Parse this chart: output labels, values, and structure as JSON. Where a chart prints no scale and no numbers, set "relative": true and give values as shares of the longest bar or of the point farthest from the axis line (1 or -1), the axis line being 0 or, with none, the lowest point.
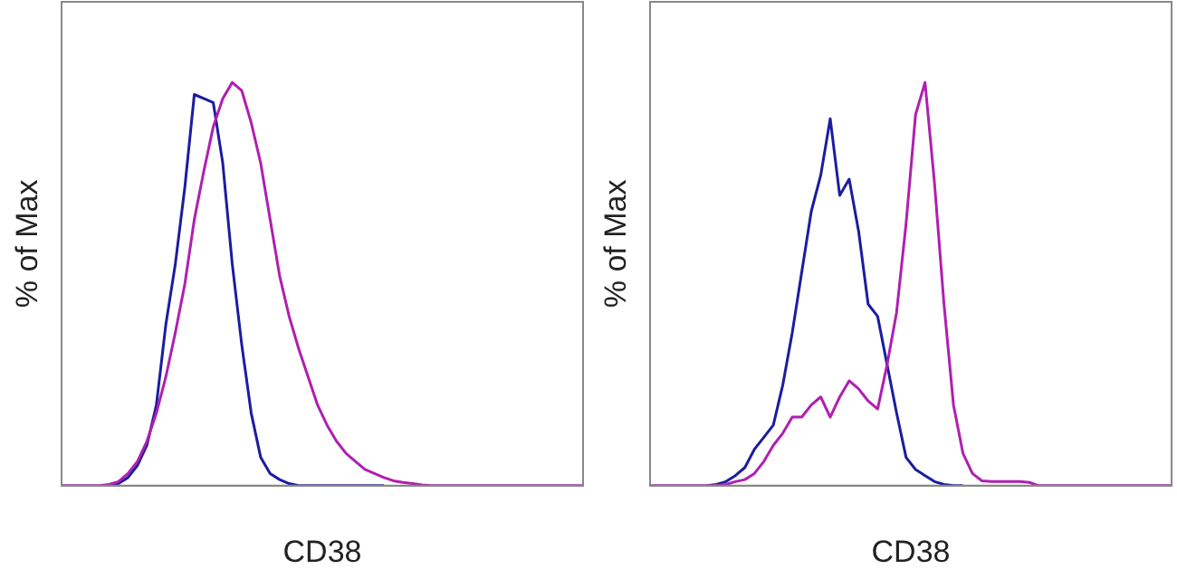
{
  "chart_data": [
    {
      "type": "line",
      "relative": true,
      "xlabel": "CD38",
      "ylabel": "% of Max",
      "categories": [
        null,
        null,
        null,
        null,
        null,
        null,
        null,
        null,
        null,
        null,
        null,
        null,
        null,
        null,
        null,
        null,
        null,
        null,
        null,
        null,
        null,
        null,
        null,
        null,
        null,
        null,
        null,
        null,
        null,
        null,
        null,
        null,
        null,
        null,
        null,
        null,
        null,
        null,
        null,
        null,
        null,
        null,
        null,
        null,
        null,
        null,
        null,
        null,
        null,
        null,
        null,
        null,
        null,
        null,
        null,
        null
      ],
      "marker": "none",
      "grid": false,
      "legend": false,
      "series": [
        {
          "color": "#1c1ca0",
          "values": [
            null,
            null,
            null,
            null,
            null,
            0,
            0.005,
            0.02,
            0.05,
            0.1,
            0.2,
            0.4,
            0.55,
            0.74,
            0.97,
            0.96,
            0.95,
            0.8,
            0.55,
            0.35,
            0.18,
            0.07,
            0.03,
            0.015,
            0.005,
            0,
            0,
            0,
            0,
            0,
            0,
            0,
            0,
            0,
            0,
            null,
            null,
            null,
            null,
            null,
            null,
            null,
            null,
            null,
            null,
            null,
            null,
            null,
            null,
            null,
            null,
            null,
            null,
            null,
            null,
            null
          ]
        },
        {
          "color": "#b01fb0",
          "values": [
            0,
            0,
            0,
            0,
            0,
            0.003,
            0.01,
            0.03,
            0.06,
            0.11,
            0.18,
            0.27,
            0.38,
            0.5,
            0.66,
            0.78,
            0.89,
            0.96,
            1,
            0.98,
            0.9,
            0.8,
            0.66,
            0.52,
            0.42,
            0.34,
            0.27,
            0.2,
            0.15,
            0.11,
            0.08,
            0.06,
            0.04,
            0.03,
            0.02,
            0.012,
            0.008,
            0.005,
            0.002,
            0,
            0,
            0,
            0,
            0,
            0,
            0,
            0,
            0,
            0,
            0,
            0,
            0,
            0,
            0,
            0,
            0
          ]
        }
      ]
    },
    {
      "type": "line",
      "relative": true,
      "xlabel": "CD38",
      "ylabel": "% of Max",
      "categories": [
        null,
        null,
        null,
        null,
        null,
        null,
        null,
        null,
        null,
        null,
        null,
        null,
        null,
        null,
        null,
        null,
        null,
        null,
        null,
        null,
        null,
        null,
        null,
        null,
        null,
        null,
        null,
        null,
        null,
        null,
        null,
        null,
        null,
        null,
        null,
        null,
        null,
        null,
        null,
        null,
        null,
        null,
        null,
        null,
        null,
        null,
        null,
        null,
        null,
        null,
        null,
        null,
        null,
        null,
        null,
        null
      ],
      "marker": "none",
      "grid": false,
      "legend": false,
      "series": [
        {
          "color": "#1c1ca0",
          "values": [
            null,
            null,
            null,
            null,
            null,
            null,
            0,
            0.003,
            0.01,
            0.025,
            0.045,
            0.09,
            0.12,
            0.15,
            0.25,
            0.38,
            0.53,
            0.68,
            0.77,
            0.91,
            0.72,
            0.76,
            0.63,
            0.45,
            0.42,
            0.3,
            0.18,
            0.07,
            0.04,
            0.025,
            0.01,
            0.003,
            0,
            0,
            null,
            null,
            null,
            null,
            null,
            null,
            null,
            null,
            null,
            null,
            null,
            null,
            null,
            null,
            null,
            null,
            null,
            null,
            null,
            null,
            null,
            null
          ]
        },
        {
          "color": "#b01fb0",
          "values": [
            0,
            0,
            0,
            0,
            0,
            0,
            0,
            0,
            0.003,
            0.01,
            0.015,
            0.03,
            0.06,
            0.1,
            0.13,
            0.17,
            0.17,
            0.2,
            0.22,
            0.17,
            0.22,
            0.26,
            0.24,
            0.21,
            0.19,
            0.3,
            0.43,
            0.65,
            0.92,
            1,
            0.75,
            0.45,
            0.2,
            0.08,
            0.03,
            0.012,
            0.01,
            0.01,
            0.01,
            0.01,
            0.008,
            0,
            0,
            0,
            0,
            0,
            0,
            0,
            0,
            0,
            0,
            0,
            0,
            0,
            0,
            0
          ]
        }
      ]
    }
  ]
}
